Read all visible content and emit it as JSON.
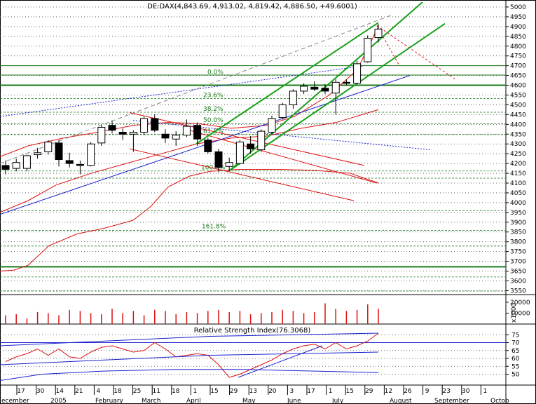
{
  "chart_data": {
    "type": "candlestick",
    "title": "DE:DAX(4,843.69, 4,913.02, 4,819.42, 4,886.50, +49.6001)",
    "price_axis": {
      "ticks": [
        "5000",
        "4950",
        "4900",
        "4850",
        "4800",
        "4750",
        "4700",
        "4650",
        "4600",
        "4550",
        "4500",
        "4450",
        "4400",
        "4350",
        "4300",
        "4250",
        "4200",
        "4150",
        "4100",
        "4050",
        "4000",
        "3950",
        "3900",
        "3850",
        "3800",
        "3750",
        "3700",
        "3650",
        "3600",
        "3550"
      ],
      "ylim": [
        3530,
        5025
      ]
    },
    "volume_axis": {
      "ticks": [
        "20000",
        "10000"
      ],
      "unit_label": "x1000"
    },
    "x_axis": {
      "day_labels": [
        "17",
        "30",
        "14",
        "21",
        "4",
        "18",
        "25",
        "11",
        "18",
        "1",
        "15",
        "29",
        "13",
        "20",
        "3",
        "17",
        "1",
        "15",
        "29",
        "12",
        "26",
        "9",
        "23",
        "30",
        "1"
      ],
      "month_labels": [
        "ecember",
        "2005",
        "February",
        "March",
        "April",
        "May",
        "June",
        "July",
        "August",
        "September",
        "Octob"
      ]
    },
    "fib_labels": [
      "0.0%",
      "23.6%",
      "38.2%",
      "50.0%",
      "61.8%",
      "100.0%",
      "161.8%"
    ],
    "candles": [
      {
        "o": 4190,
        "h": 4215,
        "l": 4145,
        "c": 4170
      },
      {
        "o": 4175,
        "h": 4225,
        "l": 4160,
        "c": 4205
      },
      {
        "o": 4175,
        "h": 4245,
        "l": 4160,
        "c": 4240
      },
      {
        "o": 4245,
        "h": 4280,
        "l": 4225,
        "c": 4255
      },
      {
        "o": 4260,
        "h": 4320,
        "l": 4245,
        "c": 4310
      },
      {
        "o": 4305,
        "h": 4320,
        "l": 4185,
        "c": 4220
      },
      {
        "o": 4215,
        "h": 4255,
        "l": 4180,
        "c": 4200
      },
      {
        "o": 4195,
        "h": 4215,
        "l": 4145,
        "c": 4190
      },
      {
        "o": 4190,
        "h": 4310,
        "l": 4185,
        "c": 4300
      },
      {
        "o": 4305,
        "h": 4395,
        "l": 4290,
        "c": 4385
      },
      {
        "o": 4395,
        "h": 4420,
        "l": 4355,
        "c": 4370
      },
      {
        "o": 4360,
        "h": 4380,
        "l": 4320,
        "c": 4350
      },
      {
        "o": 4350,
        "h": 4370,
        "l": 4260,
        "c": 4360
      },
      {
        "o": 4360,
        "h": 4440,
        "l": 4345,
        "c": 4430
      },
      {
        "o": 4430,
        "h": 4450,
        "l": 4360,
        "c": 4370
      },
      {
        "o": 4350,
        "h": 4375,
        "l": 4305,
        "c": 4330
      },
      {
        "o": 4325,
        "h": 4365,
        "l": 4290,
        "c": 4345
      },
      {
        "o": 4345,
        "h": 4425,
        "l": 4335,
        "c": 4390
      },
      {
        "o": 4395,
        "h": 4410,
        "l": 4290,
        "c": 4325
      },
      {
        "o": 4320,
        "h": 4330,
        "l": 4250,
        "c": 4260
      },
      {
        "o": 4260,
        "h": 4275,
        "l": 4155,
        "c": 4180
      },
      {
        "o": 4185,
        "h": 4230,
        "l": 4160,
        "c": 4205
      },
      {
        "o": 4200,
        "h": 4320,
        "l": 4195,
        "c": 4310
      },
      {
        "o": 4300,
        "h": 4340,
        "l": 4250,
        "c": 4275
      },
      {
        "o": 4270,
        "h": 4375,
        "l": 4260,
        "c": 4365
      },
      {
        "o": 4360,
        "h": 4445,
        "l": 4350,
        "c": 4430
      },
      {
        "o": 4435,
        "h": 4510,
        "l": 4425,
        "c": 4500
      },
      {
        "o": 4500,
        "h": 4580,
        "l": 4480,
        "c": 4570
      },
      {
        "o": 4570,
        "h": 4610,
        "l": 4555,
        "c": 4595
      },
      {
        "o": 4590,
        "h": 4620,
        "l": 4570,
        "c": 4580
      },
      {
        "o": 4585,
        "h": 4605,
        "l": 4555,
        "c": 4570
      },
      {
        "o": 4560,
        "h": 4630,
        "l": 4450,
        "c": 4615
      },
      {
        "o": 4615,
        "h": 4630,
        "l": 4600,
        "c": 4610
      },
      {
        "o": 4610,
        "h": 4725,
        "l": 4605,
        "c": 4710
      },
      {
        "o": 4720,
        "h": 4855,
        "l": 4715,
        "c": 4840
      },
      {
        "o": 4843.69,
        "h": 4913.02,
        "l": 4819.42,
        "c": 4886.5
      }
    ],
    "volume": [
      8000,
      9000,
      5000,
      11000,
      10000,
      8000,
      13000,
      12000,
      10000,
      9000,
      14000,
      10000,
      12000,
      8000,
      13000,
      12000,
      9000,
      11000,
      10000,
      12000,
      13000,
      11000,
      12000,
      9000,
      10000,
      11000,
      13000,
      12000,
      10000,
      11000,
      19000,
      14000,
      12000,
      13000,
      18000,
      14000
    ],
    "rsi": {
      "label": "Relative Strength Index(76.3068)",
      "value": 76.3068,
      "ticks": [
        "75",
        "70",
        "65",
        "60",
        "55",
        "50"
      ],
      "ylim": [
        44,
        80
      ],
      "values": [
        58,
        61,
        63,
        66,
        62,
        66,
        61,
        60,
        64,
        67,
        68,
        66,
        64,
        65,
        70,
        66,
        61,
        62,
        63,
        62,
        56,
        48,
        50,
        53,
        56,
        59,
        63,
        66,
        68,
        69,
        66,
        70,
        66,
        68,
        71,
        76
      ]
    },
    "colors": {
      "candle_up": "#ffffff",
      "candle_down": "#000000",
      "channel": "#1aa01a",
      "bollinger": "#dd1111",
      "trend": "#1a22cc",
      "volume": "#dd1111"
    }
  }
}
